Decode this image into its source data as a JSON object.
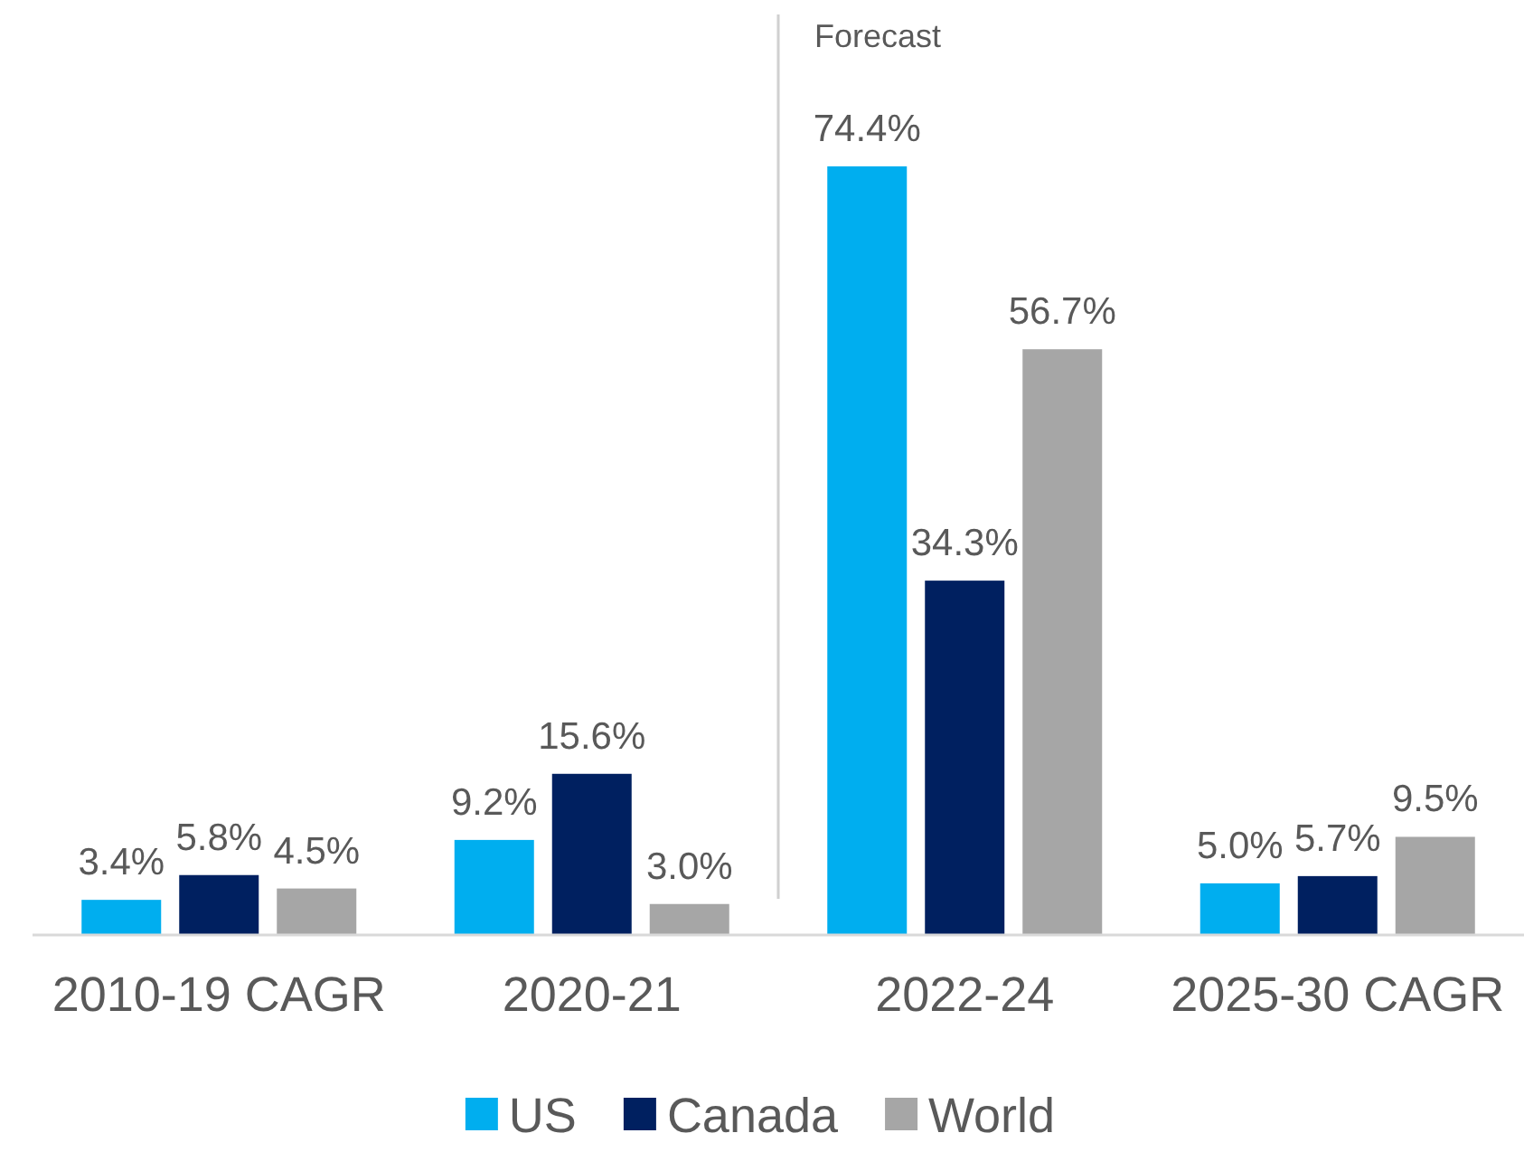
{
  "chart_data": {
    "type": "bar",
    "categories": [
      "2010-19 CAGR",
      "2020-21",
      "2022-24",
      "2025-30 CAGR"
    ],
    "series": [
      {
        "name": "US",
        "color": "#00aeef",
        "values": [
          3.4,
          9.2,
          74.4,
          5.0
        ],
        "value_labels": [
          "3.4%",
          "9.2%",
          "74.4%",
          "5.0%"
        ]
      },
      {
        "name": "Canada",
        "color": "#002060",
        "values": [
          5.8,
          15.6,
          34.3,
          5.7
        ],
        "value_labels": [
          "5.8%",
          "15.6%",
          "34.3%",
          "5.7%"
        ]
      },
      {
        "name": "World",
        "color": "#a6a6a6",
        "values": [
          4.5,
          3.0,
          56.7,
          9.5
        ],
        "value_labels": [
          "4.5%",
          "3.0%",
          "56.7%",
          "9.5%"
        ]
      }
    ],
    "annotations": [
      "Forecast"
    ],
    "legend": "bottom"
  }
}
